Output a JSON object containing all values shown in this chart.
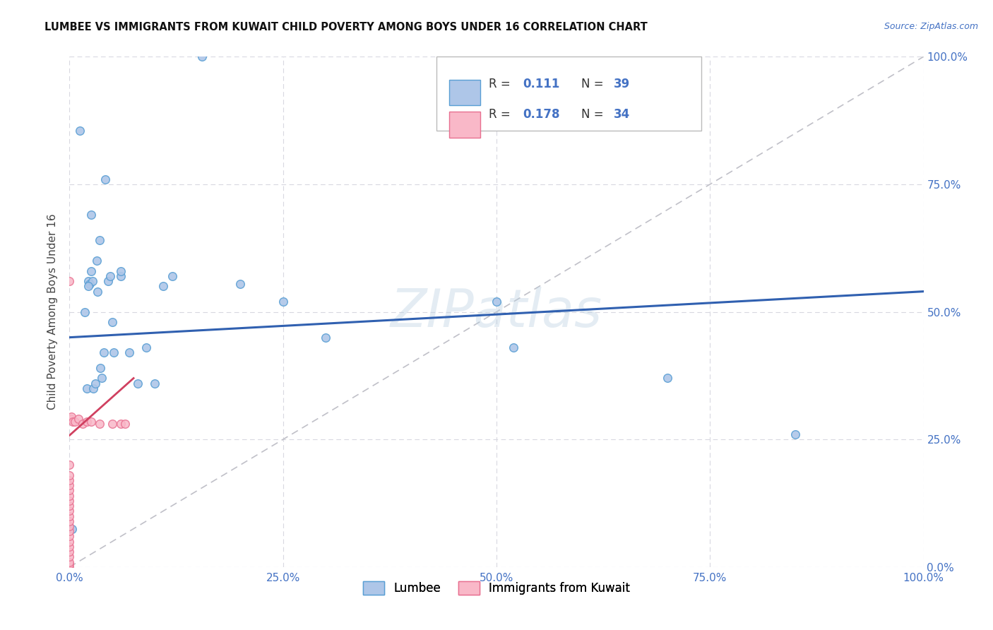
{
  "title": "LUMBEE VS IMMIGRANTS FROM KUWAIT CHILD POVERTY AMONG BOYS UNDER 16 CORRELATION CHART",
  "source": "Source: ZipAtlas.com",
  "ylabel": "Child Poverty Among Boys Under 16",
  "watermark": "ZIPatlas",
  "legend_label1": "Lumbee",
  "legend_label2": "Immigrants from Kuwait",
  "r1": "0.111",
  "n1": "39",
  "r2": "0.178",
  "n2": "34",
  "blue_scatter_color": "#aec6e8",
  "blue_edge_color": "#5a9fd4",
  "pink_scatter_color": "#f9b8c8",
  "pink_edge_color": "#e87090",
  "line_blue_color": "#3060b0",
  "line_pink_color": "#d04060",
  "diag_color": "#c0c0c8",
  "grid_color": "#d8d8e0",
  "title_color": "#111111",
  "source_color": "#4472c4",
  "axis_tick_color": "#4472c4",
  "ylabel_color": "#444444",
  "lumbee_x": [
    0.003,
    0.012,
    0.018,
    0.02,
    0.022,
    0.024,
    0.025,
    0.027,
    0.028,
    0.03,
    0.032,
    0.033,
    0.035,
    0.036,
    0.038,
    0.04,
    0.042,
    0.045,
    0.048,
    0.05,
    0.052,
    0.06,
    0.07,
    0.08,
    0.09,
    0.1,
    0.11,
    0.12,
    0.155,
    0.2,
    0.25,
    0.3,
    0.5,
    0.52,
    0.7,
    0.85,
    0.022,
    0.025,
    0.06
  ],
  "lumbee_y": [
    0.075,
    0.855,
    0.5,
    0.35,
    0.56,
    0.555,
    0.58,
    0.56,
    0.35,
    0.36,
    0.6,
    0.54,
    0.64,
    0.39,
    0.37,
    0.42,
    0.76,
    0.56,
    0.57,
    0.48,
    0.42,
    0.57,
    0.42,
    0.36,
    0.43,
    0.36,
    0.55,
    0.57,
    1.0,
    0.555,
    0.52,
    0.45,
    0.52,
    0.43,
    0.37,
    0.26,
    0.55,
    0.69,
    0.58
  ],
  "kuwait_x": [
    0.0,
    0.0,
    0.0,
    0.0,
    0.0,
    0.0,
    0.0,
    0.0,
    0.0,
    0.0,
    0.0,
    0.0,
    0.0,
    0.0,
    0.0,
    0.0,
    0.0,
    0.0,
    0.0,
    0.0,
    0.0,
    0.001,
    0.002,
    0.004,
    0.006,
    0.01,
    0.015,
    0.02,
    0.025,
    0.035,
    0.05,
    0.06,
    0.065,
    0.0
  ],
  "kuwait_y": [
    0.0,
    0.005,
    0.01,
    0.02,
    0.03,
    0.04,
    0.05,
    0.06,
    0.07,
    0.08,
    0.09,
    0.1,
    0.11,
    0.12,
    0.13,
    0.14,
    0.15,
    0.16,
    0.17,
    0.18,
    0.56,
    0.29,
    0.295,
    0.285,
    0.285,
    0.29,
    0.28,
    0.285,
    0.285,
    0.28,
    0.28,
    0.28,
    0.28,
    0.2
  ],
  "blue_line_x": [
    0.0,
    1.0
  ],
  "blue_line_y": [
    0.45,
    0.54
  ],
  "pink_line_x": [
    0.0,
    0.075
  ],
  "pink_line_y": [
    0.258,
    0.37
  ],
  "x_ticks": [
    0.0,
    0.25,
    0.5,
    0.75,
    1.0
  ],
  "x_tick_labels": [
    "0.0%",
    "25.0%",
    "50.0%",
    "75.0%",
    "100.0%"
  ],
  "y_ticks": [
    0.0,
    0.25,
    0.5,
    0.75,
    1.0
  ],
  "y_tick_labels": [
    "0.0%",
    "25.0%",
    "50.0%",
    "75.0%",
    "100.0%"
  ]
}
